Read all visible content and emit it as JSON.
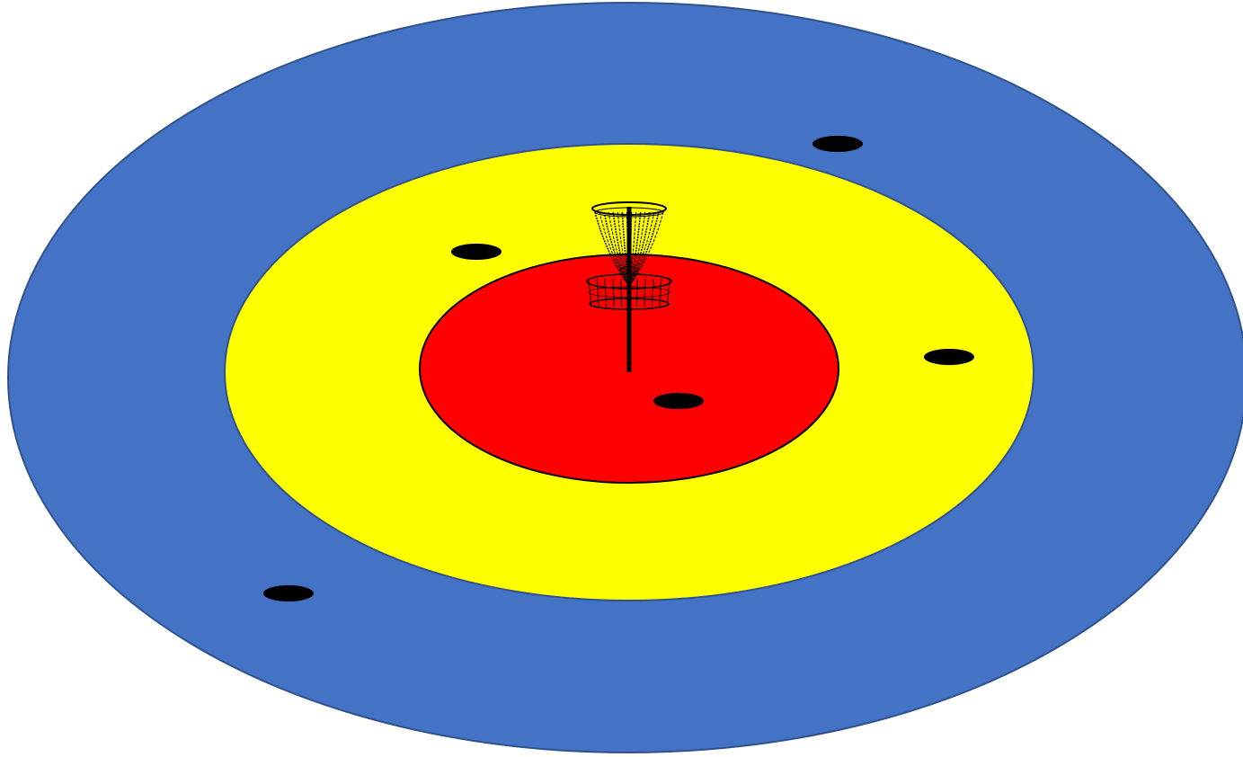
{
  "colors": {
    "background": "#ffffff",
    "outer_zone": "#4472c4",
    "outer_zone_edge": "#2f528f",
    "middle_zone": "#ffff00",
    "middle_zone_edge": "#2f528f",
    "inner_zone": "#ff0000",
    "inner_zone_edge": "#000000",
    "disc": "#000000",
    "basket": "#000000"
  },
  "zones": [
    {
      "id": "outer",
      "color_key": "outer_zone"
    },
    {
      "id": "middle",
      "color_key": "middle_zone"
    },
    {
      "id": "inner",
      "color_key": "inner_zone"
    }
  ],
  "icons": {
    "target": "disc-golf-basket-icon",
    "marker": "disc-icon"
  },
  "disc_count": 5
}
